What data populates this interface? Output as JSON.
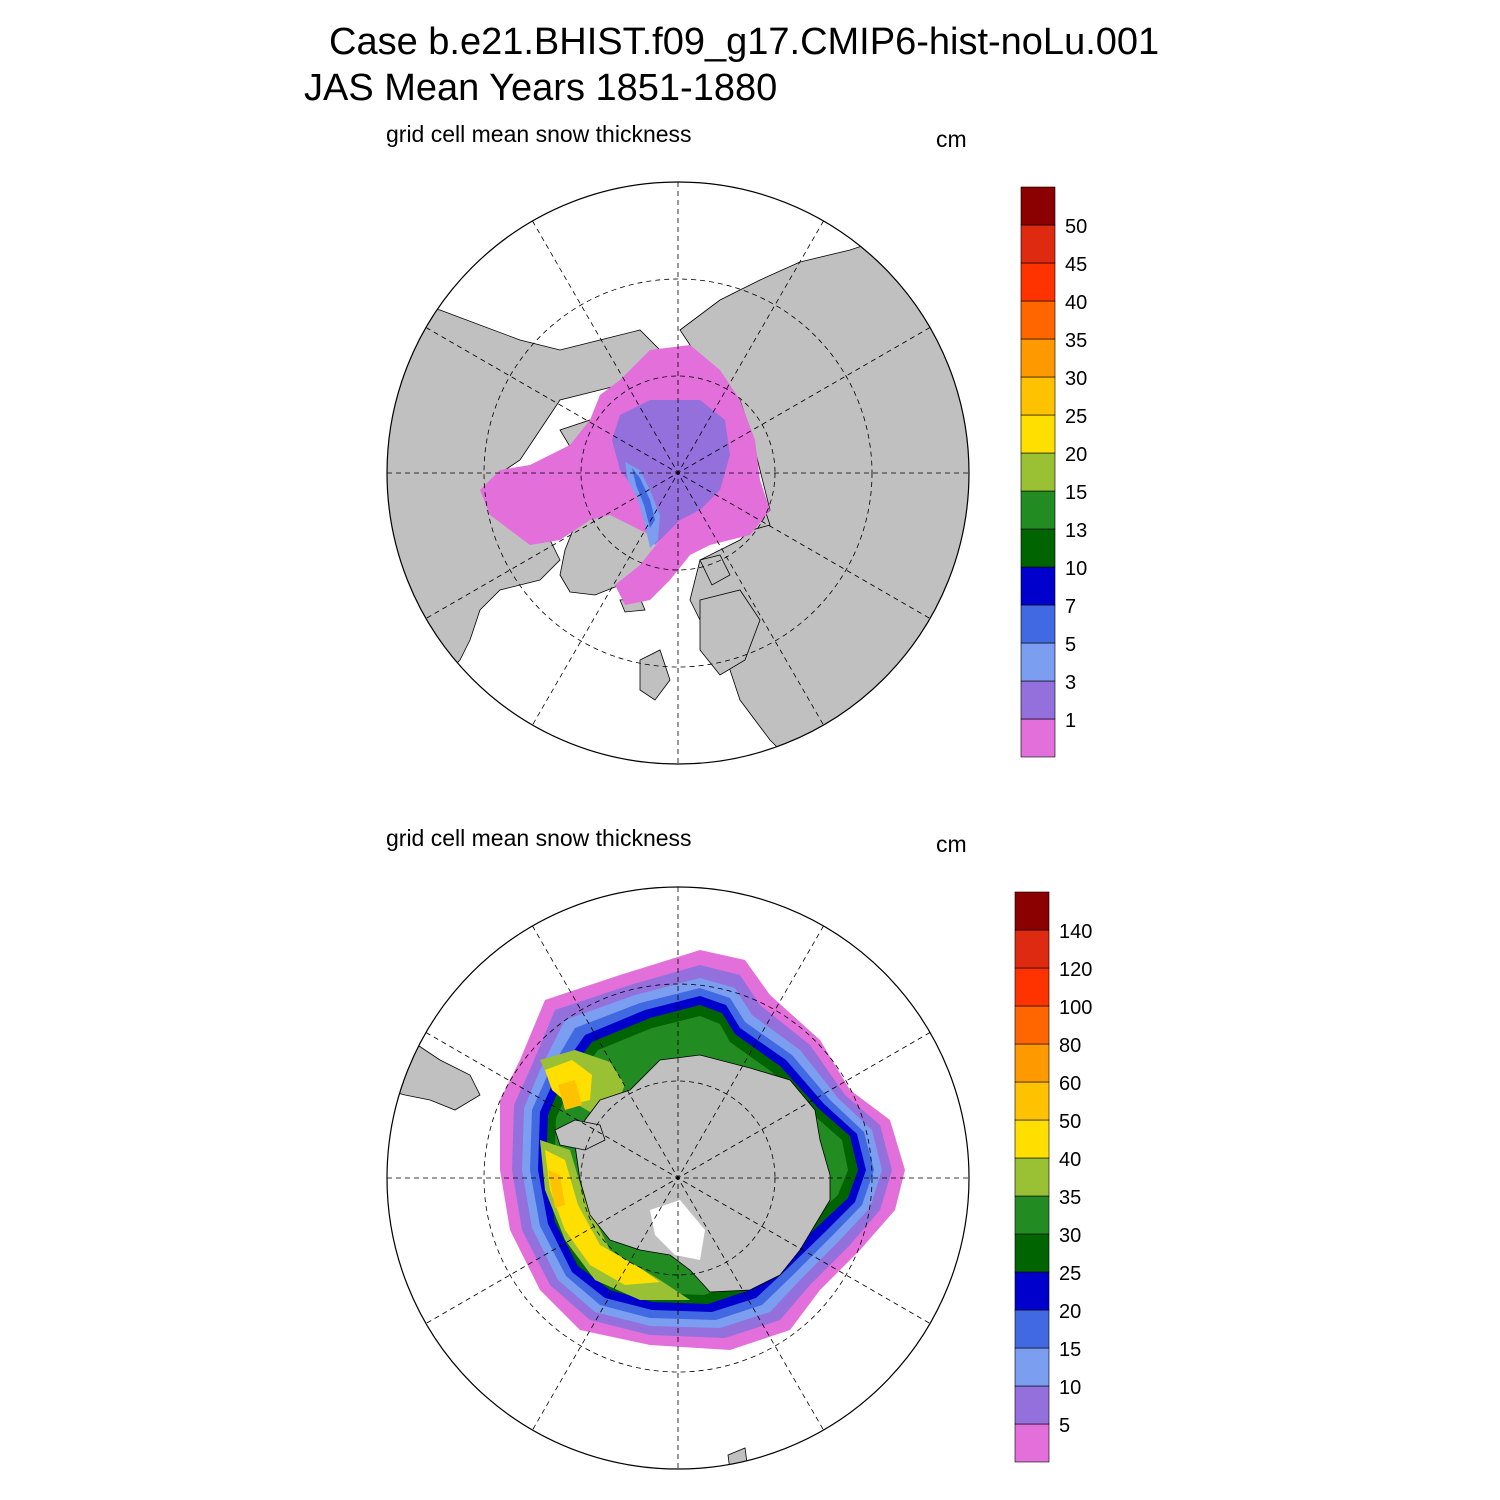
{
  "title": {
    "line1": "Case b.e21.BHIST.f09_g17.CMIP6-hist-noLu.001",
    "line2": "JAS Mean   Years 1851-1880"
  },
  "colors": {
    "land": "#c0c0c0",
    "scale": [
      "#e36fdb",
      "#9370db",
      "#7b9ef0",
      "#4169e1",
      "#0000cd",
      "#006400",
      "#228b22",
      "#9ac133",
      "#ffdf00",
      "#ffc200",
      "#ff9900",
      "#ff6600",
      "#ff3300",
      "#dd2a10",
      "#8b0000"
    ]
  },
  "panels": [
    {
      "id": "north",
      "hemisphere": "Northern Hemisphere",
      "variable": "grid cell mean snow thickness",
      "units": "cm",
      "colorbar_labels": [
        "1",
        "3",
        "5",
        "7",
        "10",
        "13",
        "15",
        "20",
        "25",
        "30",
        "35",
        "40",
        "45",
        "50"
      ]
    },
    {
      "id": "south",
      "hemisphere": "Southern Hemisphere",
      "variable": "grid cell mean snow thickness",
      "units": "cm",
      "colorbar_labels": [
        "5",
        "10",
        "15",
        "20",
        "25",
        "30",
        "35",
        "40",
        "50",
        "60",
        "80",
        "100",
        "120",
        "140"
      ]
    }
  ]
}
